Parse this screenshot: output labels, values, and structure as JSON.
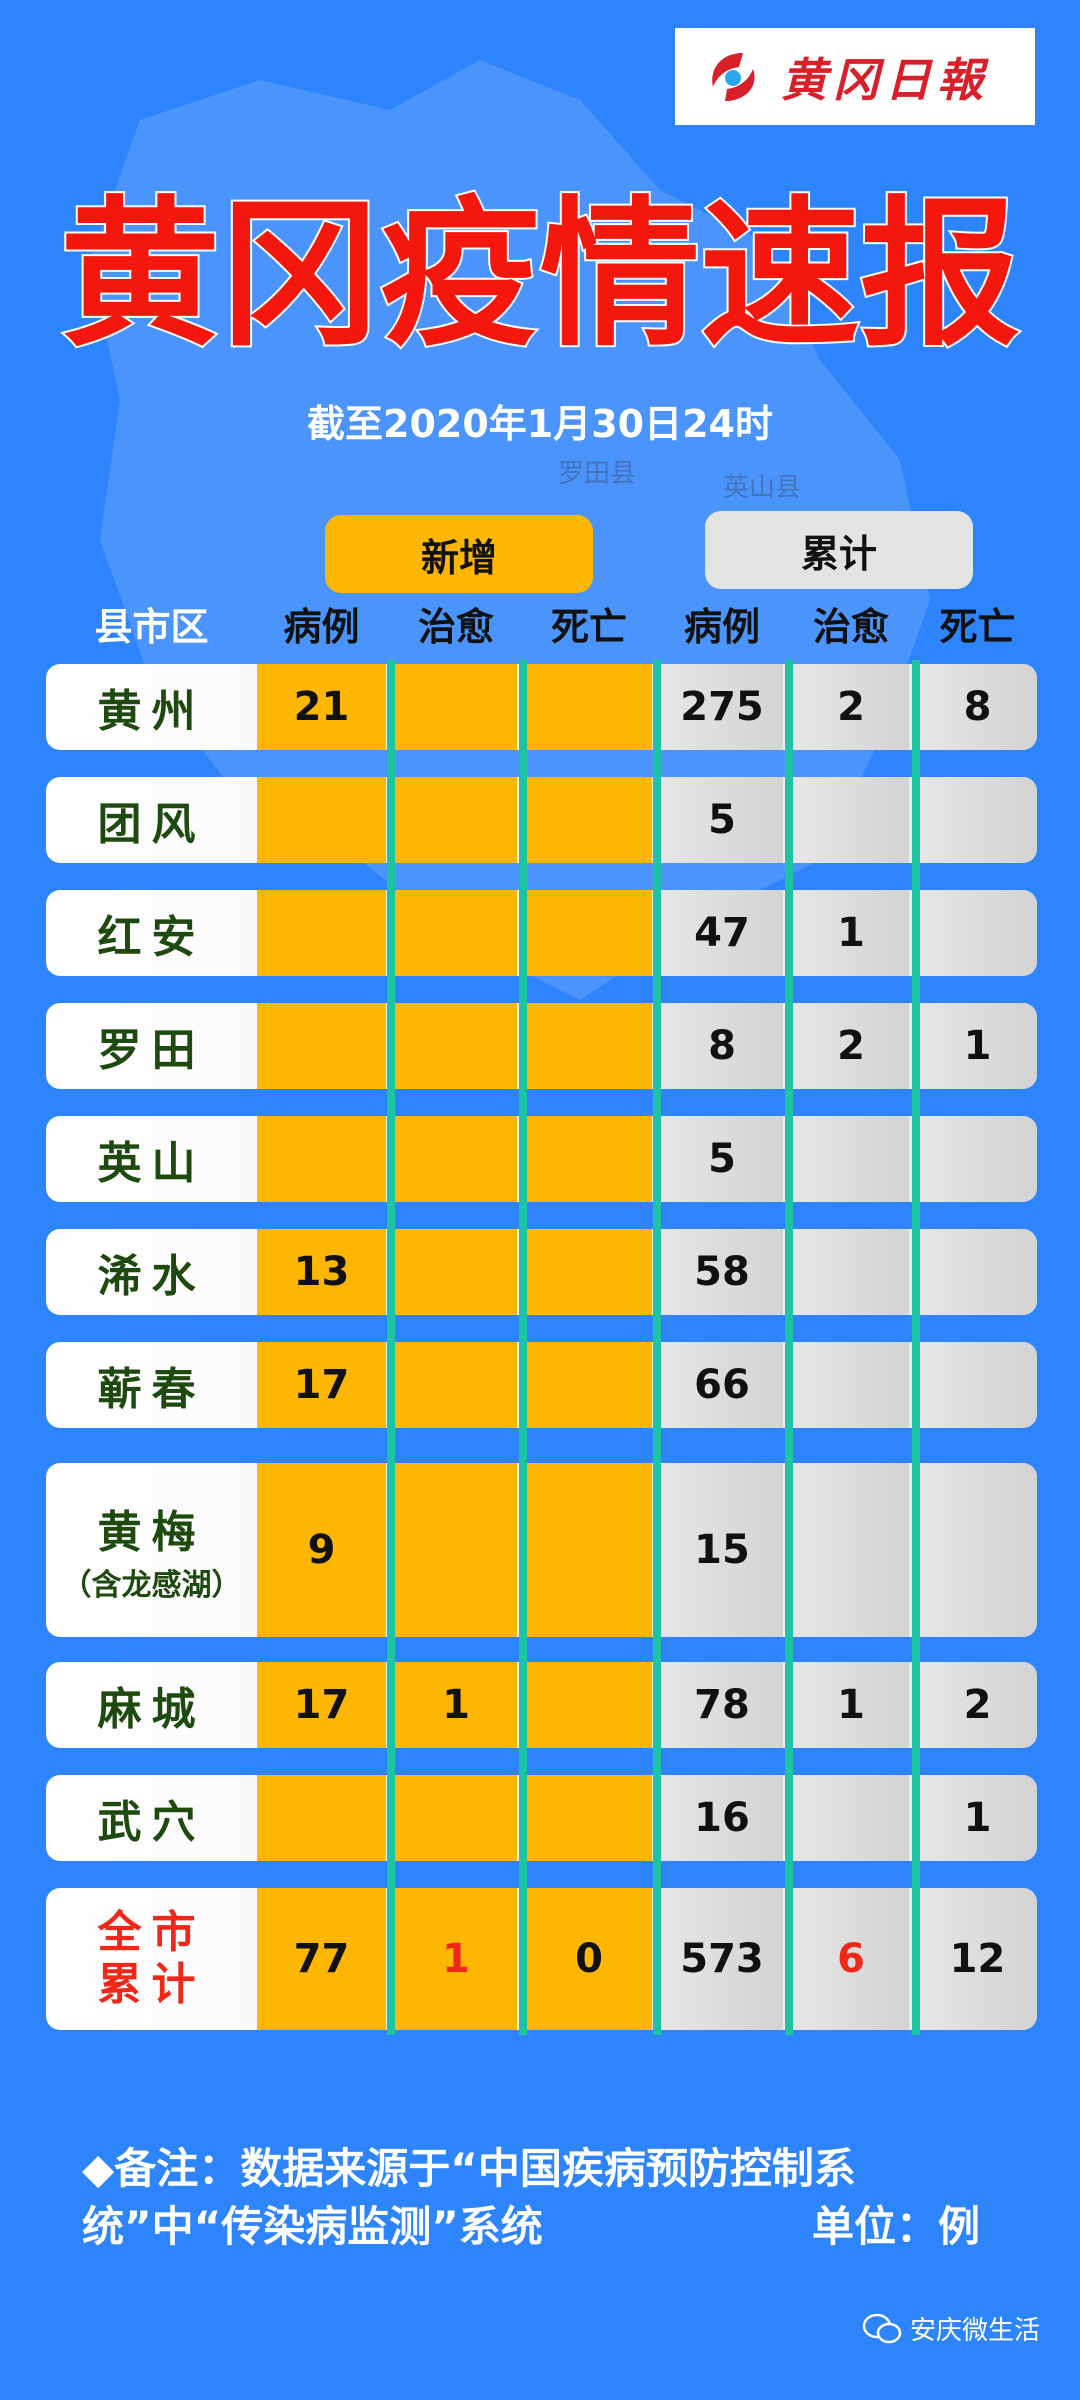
{
  "logo": {
    "text": "黄冈日報"
  },
  "title": "黄冈疫情速报",
  "date": "截至2020年1月30日24时",
  "map_labels": [
    "罗田县",
    "英山县"
  ],
  "groups": {
    "new": "新增",
    "cumulative": "累计"
  },
  "columns": [
    "县市区",
    "病例",
    "治愈",
    "死亡",
    "病例",
    "治愈",
    "死亡"
  ],
  "rows": [
    {
      "name": "黄州",
      "sub": "",
      "new_cases": "21",
      "new_cured": "",
      "new_deaths": "",
      "cases": "275",
      "cured": "2",
      "deaths": "8"
    },
    {
      "name": "团风",
      "sub": "",
      "new_cases": "",
      "new_cured": "",
      "new_deaths": "",
      "cases": "5",
      "cured": "",
      "deaths": ""
    },
    {
      "name": "红安",
      "sub": "",
      "new_cases": "",
      "new_cured": "",
      "new_deaths": "",
      "cases": "47",
      "cured": "1",
      "deaths": ""
    },
    {
      "name": "罗田",
      "sub": "",
      "new_cases": "",
      "new_cured": "",
      "new_deaths": "",
      "cases": "8",
      "cured": "2",
      "deaths": "1"
    },
    {
      "name": "英山",
      "sub": "",
      "new_cases": "",
      "new_cured": "",
      "new_deaths": "",
      "cases": "5",
      "cured": "",
      "deaths": ""
    },
    {
      "name": "浠水",
      "sub": "",
      "new_cases": "13",
      "new_cured": "",
      "new_deaths": "",
      "cases": "58",
      "cured": "",
      "deaths": ""
    },
    {
      "name": "蕲春",
      "sub": "",
      "new_cases": "17",
      "new_cured": "",
      "new_deaths": "",
      "cases": "66",
      "cured": "",
      "deaths": ""
    },
    {
      "name": "黄梅",
      "sub": "（含龙感湖）",
      "new_cases": "9",
      "new_cured": "",
      "new_deaths": "",
      "cases": "15",
      "cured": "",
      "deaths": ""
    },
    {
      "name": "麻城",
      "sub": "",
      "new_cases": "17",
      "new_cured": "1",
      "new_deaths": "",
      "cases": "78",
      "cured": "1",
      "deaths": "2"
    },
    {
      "name": "武穴",
      "sub": "",
      "new_cases": "",
      "new_cured": "",
      "new_deaths": "",
      "cases": "16",
      "cured": "",
      "deaths": "1"
    }
  ],
  "total": {
    "name_line1": "全市",
    "name_line2": "累计",
    "new_cases": "77",
    "new_cured": "1",
    "new_deaths": "0",
    "cases": "573",
    "cured": "6",
    "deaths": "12"
  },
  "note": {
    "text": "◆备注：数据来源于“中国疾病预防控制系统”中“传染病监测”系统",
    "unit": "单位：例"
  },
  "watermark": "安庆微生活",
  "colors": {
    "background": "#2e84fb",
    "new_fill": "#fdb702",
    "cum_fill": "#e3e3e3",
    "divider": "#1ec3a3",
    "title": "#f4170d",
    "highlight": "#f0281a"
  }
}
